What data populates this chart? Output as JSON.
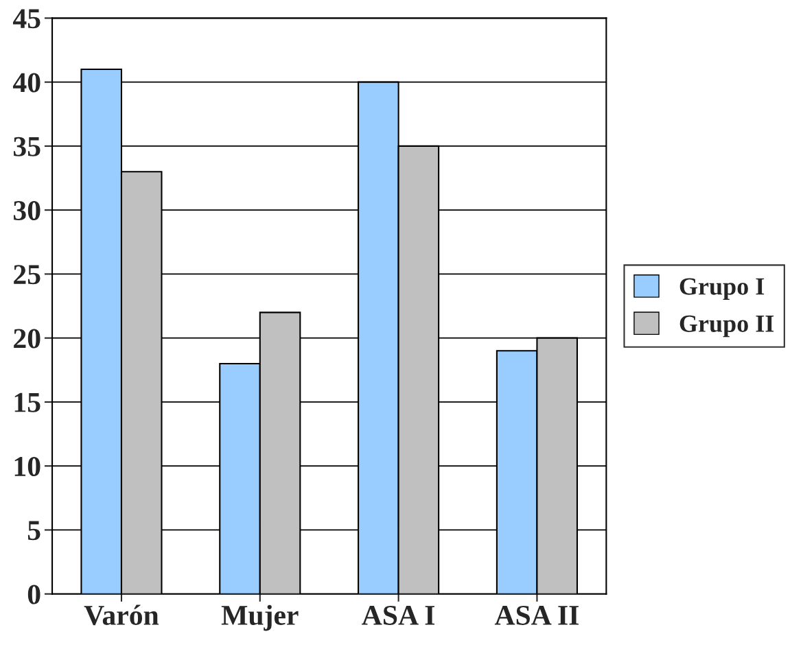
{
  "chart_data": {
    "type": "bar",
    "categories": [
      "Varón",
      "Mujer",
      "ASA I",
      "ASA II"
    ],
    "series": [
      {
        "name": "Grupo I",
        "color": "#99ccff",
        "values": [
          41,
          18,
          40,
          19
        ]
      },
      {
        "name": "Grupo II",
        "color": "#c0c0c0",
        "values": [
          33,
          22,
          35,
          20
        ]
      }
    ],
    "ylim": [
      0,
      45
    ],
    "yticks": [
      0,
      5,
      10,
      15,
      20,
      25,
      30,
      35,
      40,
      45
    ],
    "grid": "y",
    "legend": "right"
  }
}
